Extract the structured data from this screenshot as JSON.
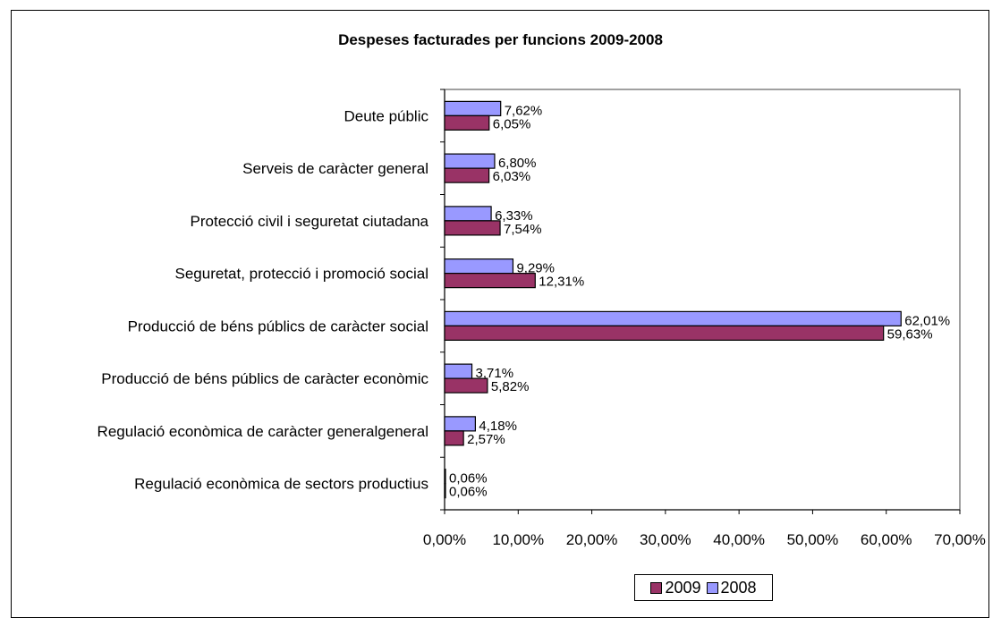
{
  "chart_data": {
    "type": "bar",
    "orientation": "horizontal",
    "title": "Despeses facturades per funcions 2009-2008",
    "categories": [
      "Deute públic",
      "Serveis de caràcter general",
      "Protecció civil i seguretat ciutadana",
      "Seguretat, protecció i promoció social",
      "Producció de béns públics de caràcter social",
      "Producció de béns públics de caràcter econòmic",
      "Regulació econòmica de caràcter generalgeneral",
      "Regulació econòmica de sectors productius"
    ],
    "series": [
      {
        "name": "2008",
        "color": "#9999ff",
        "values": [
          7.62,
          6.8,
          6.33,
          9.29,
          62.01,
          3.71,
          4.18,
          0.06
        ],
        "labels": [
          "7,62%",
          "6,80%",
          "6,33%",
          "9,29%",
          "62,01%",
          "3,71%",
          "4,18%",
          "0,06%"
        ]
      },
      {
        "name": "2009",
        "color": "#993366",
        "values": [
          6.05,
          6.03,
          7.54,
          12.31,
          59.63,
          5.82,
          2.57,
          0.06
        ],
        "labels": [
          "6,05%",
          "6,03%",
          "7,54%",
          "12,31%",
          "59,63%",
          "5,82%",
          "2,57%",
          "0,06%"
        ]
      }
    ],
    "xlim": [
      0,
      70
    ],
    "xticks": [
      "0,00%",
      "10,00%",
      "20,00%",
      "30,00%",
      "40,00%",
      "50,00%",
      "60,00%",
      "70,00%"
    ],
    "grid": false,
    "legend_position": "bottom",
    "legend_order": [
      "2009",
      "2008"
    ]
  }
}
